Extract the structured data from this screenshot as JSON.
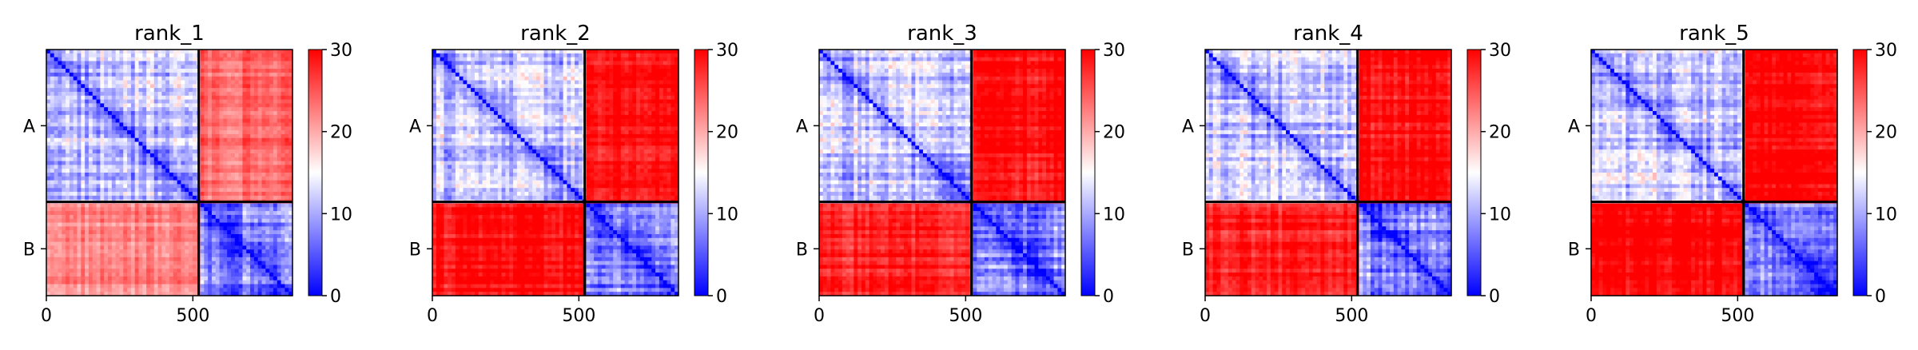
{
  "chart_data": [
    {
      "type": "heatmap",
      "title": "rank_1",
      "chains": [
        {
          "label": "A",
          "start": 0,
          "end": 520
        },
        {
          "label": "B",
          "start": 520,
          "end": 840
        }
      ],
      "x_ticks": [
        0,
        500
      ],
      "xlim": [
        0,
        840
      ],
      "colorbar": {
        "min": 0,
        "max": 30,
        "ticks": [
          0,
          10,
          20,
          30
        ]
      },
      "block_means": {
        "AA": 12,
        "AB": 24,
        "BA": 22,
        "BB": 8
      }
    },
    {
      "type": "heatmap",
      "title": "rank_2",
      "chains": [
        {
          "label": "A",
          "start": 0,
          "end": 520
        },
        {
          "label": "B",
          "start": 520,
          "end": 840
        }
      ],
      "x_ticks": [
        0,
        500
      ],
      "xlim": [
        0,
        840
      ],
      "colorbar": {
        "min": 0,
        "max": 30,
        "ticks": [
          0,
          10,
          20,
          30
        ]
      },
      "block_means": {
        "AA": 12,
        "AB": 29,
        "BA": 29,
        "BB": 8
      }
    },
    {
      "type": "heatmap",
      "title": "rank_3",
      "chains": [
        {
          "label": "A",
          "start": 0,
          "end": 520
        },
        {
          "label": "B",
          "start": 520,
          "end": 840
        }
      ],
      "x_ticks": [
        0,
        500
      ],
      "xlim": [
        0,
        840
      ],
      "colorbar": {
        "min": 0,
        "max": 30,
        "ticks": [
          0,
          10,
          20,
          30
        ]
      },
      "block_means": {
        "AA": 12,
        "AB": 29,
        "BA": 28,
        "BB": 8
      }
    },
    {
      "type": "heatmap",
      "title": "rank_4",
      "chains": [
        {
          "label": "A",
          "start": 0,
          "end": 520
        },
        {
          "label": "B",
          "start": 520,
          "end": 840
        }
      ],
      "x_ticks": [
        0,
        500
      ],
      "xlim": [
        0,
        840
      ],
      "colorbar": {
        "min": 0,
        "max": 30,
        "ticks": [
          0,
          10,
          20,
          30
        ]
      },
      "block_means": {
        "AA": 12,
        "AB": 29,
        "BA": 28,
        "BB": 8
      }
    },
    {
      "type": "heatmap",
      "title": "rank_5",
      "chains": [
        {
          "label": "A",
          "start": 0,
          "end": 520
        },
        {
          "label": "B",
          "start": 520,
          "end": 840
        }
      ],
      "x_ticks": [
        0,
        500
      ],
      "xlim": [
        0,
        840
      ],
      "colorbar": {
        "min": 0,
        "max": 30,
        "ticks": [
          0,
          10,
          20,
          30
        ]
      },
      "block_means": {
        "AA": 12,
        "AB": 30,
        "BA": 30,
        "BB": 8
      }
    }
  ]
}
